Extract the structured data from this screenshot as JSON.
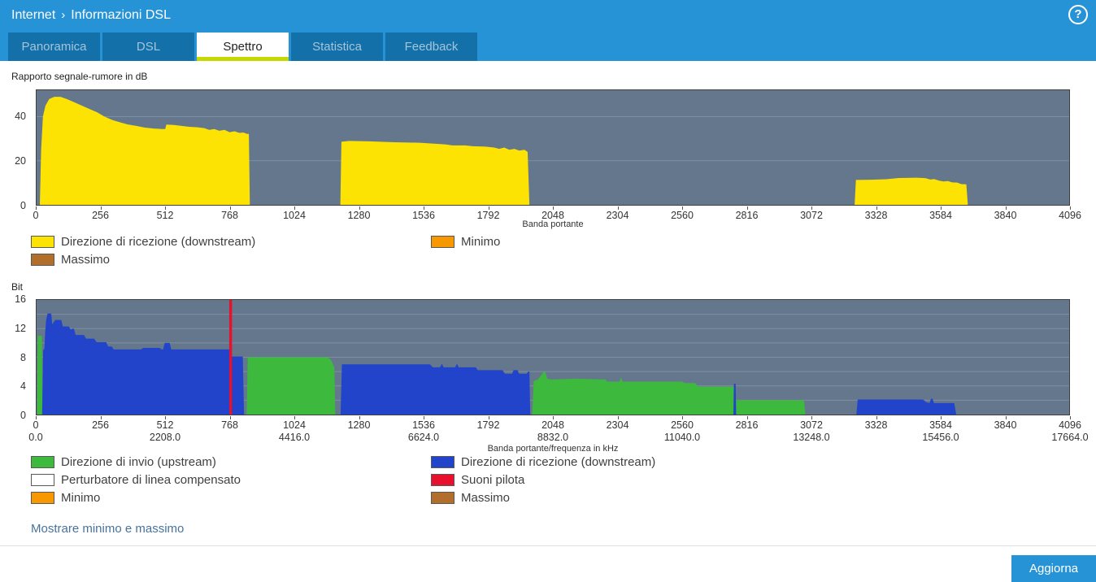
{
  "header": {
    "breadcrumb": {
      "section": "Internet",
      "separator": "›",
      "page": "Informazioni DSL"
    },
    "help": "?"
  },
  "tabs": [
    {
      "label": "Panoramica",
      "active": false
    },
    {
      "label": "DSL",
      "active": false
    },
    {
      "label": "Spettro",
      "active": true
    },
    {
      "label": "Statistica",
      "active": false
    },
    {
      "label": "Feedback",
      "active": false
    }
  ],
  "colors": {
    "header_bar": "#2793d7",
    "tab_background": "#1470a8",
    "active_tab_underline": "#c6d800",
    "plot_background": "#64778c",
    "downstream_snr": "#fce303",
    "upstream_bits": "#3db93d",
    "downstream_bits": "#2144cb",
    "pilot_tone": "#e8112d",
    "minimum": "#f79800",
    "maximum": "#b26f2c",
    "link": "#46729e"
  },
  "chart_data": [
    {
      "type": "area",
      "title": "Rapporto segnale-rumore in dB",
      "xlabel": "Banda portante",
      "xlim": [
        0,
        4096
      ],
      "ylim": [
        0,
        52
      ],
      "xticks": [
        0,
        256,
        512,
        768,
        1024,
        1280,
        1536,
        1792,
        2048,
        2304,
        2560,
        2816,
        3072,
        3328,
        3584,
        3840,
        4096
      ],
      "yticks": [
        0,
        20,
        40
      ],
      "ygrid": [
        20,
        40
      ],
      "grid": "horizontal",
      "legend_position": "bottom",
      "series": [
        {
          "name": "Direzione di ricezione (downstream)",
          "color": "#fce303",
          "segments": [
            [
              [
                13,
                0
              ],
              [
                18,
                25
              ],
              [
                25,
                40
              ],
              [
                35,
                45
              ],
              [
                50,
                48
              ],
              [
                70,
                49
              ],
              [
                95,
                49
              ],
              [
                120,
                48
              ],
              [
                150,
                46.5
              ],
              [
                180,
                45
              ],
              [
                210,
                43.5
              ],
              [
                240,
                42
              ],
              [
                270,
                40
              ],
              [
                300,
                38.5
              ],
              [
                330,
                37.5
              ],
              [
                360,
                36.5
              ],
              [
                395,
                35.8
              ],
              [
                430,
                35
              ],
              [
                465,
                34.6
              ],
              [
                500,
                34.4
              ],
              [
                510,
                34.4
              ],
              [
                515,
                36.4
              ],
              [
                545,
                36.2
              ],
              [
                575,
                35.8
              ],
              [
                605,
                35.4
              ],
              [
                635,
                35.2
              ],
              [
                665,
                34.8
              ],
              [
                685,
                34
              ],
              [
                705,
                34.4
              ],
              [
                725,
                33.6
              ],
              [
                745,
                34
              ],
              [
                765,
                33
              ],
              [
                785,
                33.4
              ],
              [
                805,
                32.6
              ],
              [
                820,
                32.8
              ],
              [
                835,
                32.2
              ],
              [
                842,
                32.2
              ],
              [
                846,
                0
              ]
            ],
            [
              [
                1205,
                0
              ],
              [
                1209,
                28.6
              ],
              [
                1240,
                29
              ],
              [
                1320,
                28.8
              ],
              [
                1420,
                28.4
              ],
              [
                1520,
                28.2
              ],
              [
                1570,
                27.8
              ],
              [
                1620,
                27.4
              ],
              [
                1650,
                27
              ],
              [
                1700,
                27
              ],
              [
                1730,
                26.6
              ],
              [
                1780,
                26.4
              ],
              [
                1815,
                26
              ],
              [
                1835,
                25.4
              ],
              [
                1855,
                26
              ],
              [
                1875,
                25
              ],
              [
                1895,
                25.4
              ],
              [
                1915,
                24.6
              ],
              [
                1935,
                25
              ],
              [
                1948,
                24
              ],
              [
                1955,
                0
              ]
            ],
            [
              [
                3245,
                0
              ],
              [
                3250,
                11.3
              ],
              [
                3310,
                11.4
              ],
              [
                3370,
                11.6
              ],
              [
                3420,
                12.2
              ],
              [
                3490,
                12.3
              ],
              [
                3525,
                12.1
              ],
              [
                3545,
                11.5
              ],
              [
                3560,
                11.7
              ],
              [
                3580,
                11
              ],
              [
                3598,
                10.6
              ],
              [
                3615,
                10.8
              ],
              [
                3632,
                10.2
              ],
              [
                3652,
                10.1
              ],
              [
                3668,
                9.4
              ],
              [
                3688,
                9.3
              ],
              [
                3694,
                0
              ]
            ]
          ]
        }
      ],
      "legend": [
        {
          "label": "Direzione di ricezione (downstream)",
          "color": "#fce303"
        },
        {
          "label": "Minimo",
          "color": "#f79800"
        },
        {
          "label": "Massimo",
          "color": "#b26f2c"
        }
      ]
    },
    {
      "type": "area",
      "title": "Bit",
      "xlabel": "Banda portante/frequenza in kHz",
      "xlim": [
        0,
        4096
      ],
      "ylim": [
        0,
        16
      ],
      "xticks": [
        0,
        256,
        512,
        768,
        1024,
        1280,
        1536,
        1792,
        2048,
        2304,
        2560,
        2816,
        3072,
        3328,
        3584,
        3840,
        4096
      ],
      "xticks_freq": [
        "0.0",
        "",
        "2208.0",
        "",
        "4416.0",
        "",
        "6624.0",
        "",
        "8832.0",
        "",
        "11040.0",
        "",
        "13248.0",
        "",
        "15456.0",
        "",
        "17664.0"
      ],
      "yticks": [
        0,
        4,
        8,
        12,
        16
      ],
      "ygrid": [
        2,
        4,
        6,
        8,
        10,
        12,
        14
      ],
      "grid": "horizontal",
      "legend_position": "bottom",
      "series": [
        {
          "name": "Direzione di invio (upstream)",
          "color": "#3db93d",
          "segments": [
            [
              [
                2,
                0
              ],
              [
                5,
                11
              ],
              [
                21,
                11
              ],
              [
                24,
                0
              ]
            ],
            [
              [
                833,
                0
              ],
              [
                838,
                8
              ],
              [
                1148,
                8
              ],
              [
                1158,
                7.9
              ],
              [
                1168,
                7.6
              ],
              [
                1176,
                7
              ],
              [
                1181,
                6.6
              ],
              [
                1185,
                0
              ]
            ],
            [
              [
                1966,
                0
              ],
              [
                1972,
                4.7
              ],
              [
                1988,
                4.9
              ],
              [
                2002,
                5.5
              ],
              [
                2012,
                6
              ],
              [
                2018,
                5.9
              ],
              [
                2026,
                5
              ],
              [
                2040,
                4.9
              ],
              [
                2140,
                5
              ],
              [
                2256,
                4.9
              ],
              [
                2264,
                4.6
              ],
              [
                2312,
                4.6
              ],
              [
                2318,
                5.2
              ],
              [
                2325,
                4.6
              ],
              [
                2430,
                4.6
              ],
              [
                2560,
                4.6
              ],
              [
                2572,
                4.4
              ],
              [
                2612,
                4.4
              ],
              [
                2626,
                3.9
              ],
              [
                2700,
                3.9
              ],
              [
                2768,
                3.9
              ],
              [
                2774,
                2.1
              ],
              [
                2790,
                2
              ],
              [
                2920,
                2
              ],
              [
                3040,
                2
              ],
              [
                3045,
                1.8
              ],
              [
                3049,
                0
              ]
            ]
          ]
        },
        {
          "name": "Direzione di ricezione (downstream)",
          "color": "#2144cb",
          "segments": [
            [
              [
                22,
                0
              ],
              [
                26,
                9
              ],
              [
                31,
                9.2
              ],
              [
                34,
                11.5
              ],
              [
                38,
                13.2
              ],
              [
                43,
                14.1
              ],
              [
                58,
                14.1
              ],
              [
                62,
                12.6
              ],
              [
                68,
                12.9
              ],
              [
                74,
                13.2
              ],
              [
                98,
                13.2
              ],
              [
                104,
                12.3
              ],
              [
                128,
                12.3
              ],
              [
                134,
                11.9
              ],
              [
                148,
                12
              ],
              [
                155,
                11.1
              ],
              [
                188,
                11.1
              ],
              [
                196,
                10.6
              ],
              [
                228,
                10.6
              ],
              [
                238,
                10.1
              ],
              [
                276,
                10.1
              ],
              [
                284,
                9.5
              ],
              [
                298,
                9.5
              ],
              [
                306,
                9.1
              ],
              [
                414,
                9.1
              ],
              [
                424,
                9.3
              ],
              [
                488,
                9.3
              ],
              [
                496,
                9.1
              ],
              [
                502,
                9.1
              ],
              [
                508,
                10
              ],
              [
                528,
                10
              ],
              [
                534,
                9.1
              ],
              [
                600,
                9.1
              ],
              [
                700,
                9.1
              ],
              [
                768,
                9.1
              ],
              [
                772,
                8.1
              ],
              [
                818,
                8.1
              ],
              [
                823,
                0
              ]
            ],
            [
              [
                1206,
                0
              ],
              [
                1211,
                7
              ],
              [
                1300,
                7
              ],
              [
                1480,
                7
              ],
              [
                1560,
                7
              ],
              [
                1572,
                6.6
              ],
              [
                1600,
                6.6
              ],
              [
                1608,
                7.1
              ],
              [
                1614,
                6.6
              ],
              [
                1660,
                6.6
              ],
              [
                1668,
                7.1
              ],
              [
                1674,
                6.6
              ],
              [
                1700,
                6.6
              ],
              [
                1742,
                6.6
              ],
              [
                1750,
                6.2
              ],
              [
                1830,
                6.2
              ],
              [
                1848,
                6.2
              ],
              [
                1858,
                5.7
              ],
              [
                1886,
                5.7
              ],
              [
                1892,
                6.2
              ],
              [
                1908,
                6.2
              ],
              [
                1914,
                5.7
              ],
              [
                1944,
                5.7
              ],
              [
                1950,
                6
              ],
              [
                1955,
                6
              ],
              [
                1958,
                0
              ]
            ],
            [
              [
                2764,
                0
              ],
              [
                2766,
                4.3
              ],
              [
                2773,
                4.3
              ],
              [
                2775,
                0
              ]
            ],
            [
              [
                3252,
                0
              ],
              [
                3257,
                2.1
              ],
              [
                3400,
                2.1
              ],
              [
                3516,
                2.1
              ],
              [
                3530,
                1.7
              ],
              [
                3542,
                1.6
              ],
              [
                3548,
                2.2
              ],
              [
                3554,
                2.2
              ],
              [
                3560,
                1.6
              ],
              [
                3640,
                1.6
              ],
              [
                3648,
                0
              ]
            ]
          ]
        },
        {
          "name": "Suoni pilota",
          "color": "#e8112d",
          "segments": [
            [
              [
                764,
                0
              ],
              [
                764,
                16
              ],
              [
                775,
                16
              ],
              [
                775,
                0
              ]
            ]
          ]
        }
      ],
      "legend": [
        {
          "label": "Direzione di invio (upstream)",
          "color": "#3db93d"
        },
        {
          "label": "Direzione di ricezione (downstream)",
          "color": "#2144cb"
        },
        {
          "label": "Perturbatore di linea compensato",
          "color": "#ffffff"
        },
        {
          "label": "Suoni pilota",
          "color": "#e8112d"
        },
        {
          "label": "Minimo",
          "color": "#f79800"
        },
        {
          "label": "Massimo",
          "color": "#b26f2c"
        }
      ]
    }
  ],
  "actions": {
    "show_minmax_link": "Mostrare minimo e massimo",
    "refresh_label": "Aggiorna"
  }
}
